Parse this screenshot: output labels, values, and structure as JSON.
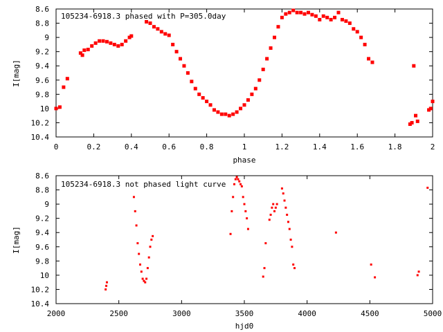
{
  "chart_data": [
    {
      "type": "scatter",
      "title": "105234-6918.3 phased with P=305.0day",
      "xlabel": "phase",
      "ylabel": "I[mag]",
      "xlim": [
        0,
        2
      ],
      "ylim": [
        10.4,
        8.6
      ],
      "y_inverted": true,
      "xticks": [
        "0",
        "0.2",
        "0.4",
        "0.6",
        "0.8",
        "1",
        "1.2",
        "1.4",
        "1.6",
        "1.8",
        "2"
      ],
      "yticks": [
        "8.6",
        "8.8",
        "9",
        "9.2",
        "9.4",
        "9.6",
        "9.8",
        "10",
        "10.2",
        "10.4"
      ],
      "grid": false,
      "marker_color": "#ff0000",
      "series": [
        {
          "name": "",
          "x": [
            0.0,
            0.02,
            0.04,
            0.06,
            0.13,
            0.14,
            0.15,
            0.17,
            0.19,
            0.21,
            0.23,
            0.25,
            0.27,
            0.29,
            0.31,
            0.33,
            0.35,
            0.37,
            0.39,
            0.4,
            0.48,
            0.5,
            0.52,
            0.54,
            0.56,
            0.58,
            0.6,
            0.62,
            0.64,
            0.66,
            0.68,
            0.7,
            0.72,
            0.74,
            0.76,
            0.78,
            0.8,
            0.82,
            0.84,
            0.86,
            0.88,
            0.9,
            0.92,
            0.94,
            0.96,
            0.98,
            1.0,
            1.02,
            1.04,
            1.06,
            1.08,
            1.1,
            1.12,
            1.14,
            1.16,
            1.18,
            1.2,
            1.22,
            1.24,
            1.26,
            1.28,
            1.3,
            1.32,
            1.34,
            1.36,
            1.38,
            1.4,
            1.42,
            1.44,
            1.46,
            1.48,
            1.5,
            1.52,
            1.54,
            1.56,
            1.58,
            1.6,
            1.62,
            1.64,
            1.66,
            1.68,
            1.88,
            1.89,
            1.9,
            1.91,
            1.92,
            1.98,
            1.99,
            2.0
          ],
          "y": [
            10.0,
            9.98,
            9.7,
            9.58,
            9.22,
            9.25,
            9.18,
            9.17,
            9.12,
            9.08,
            9.05,
            9.05,
            9.06,
            9.08,
            9.1,
            9.12,
            9.1,
            9.05,
            9.0,
            8.98,
            8.78,
            8.8,
            8.85,
            8.88,
            8.92,
            8.95,
            8.97,
            9.1,
            9.2,
            9.3,
            9.4,
            9.5,
            9.62,
            9.72,
            9.8,
            9.85,
            9.9,
            9.95,
            10.02,
            10.05,
            10.08,
            10.08,
            10.1,
            10.08,
            10.05,
            10.0,
            9.95,
            9.88,
            9.8,
            9.72,
            9.6,
            9.45,
            9.3,
            9.15,
            9.0,
            8.85,
            8.72,
            8.67,
            8.65,
            8.62,
            8.65,
            8.65,
            8.67,
            8.65,
            8.68,
            8.7,
            8.75,
            8.7,
            8.72,
            8.75,
            8.72,
            8.65,
            8.75,
            8.77,
            8.8,
            8.88,
            8.92,
            9.0,
            9.1,
            9.3,
            9.35,
            10.22,
            10.2,
            9.4,
            10.1,
            10.18,
            10.02,
            10.0,
            9.9
          ]
        }
      ]
    },
    {
      "type": "scatter",
      "title": "105234-6918.3 not phased light curve",
      "xlabel": "hjd0",
      "ylabel": "I[mag]",
      "xlim": [
        2000,
        5000
      ],
      "ylim": [
        10.4,
        8.6
      ],
      "y_inverted": true,
      "xticks": [
        "2000",
        "2500",
        "3000",
        "3500",
        "4000",
        "4500",
        "5000"
      ],
      "yticks": [
        "8.6",
        "8.8",
        "9",
        "9.2",
        "9.4",
        "9.6",
        "9.8",
        "10",
        "10.2",
        "10.4"
      ],
      "grid": false,
      "marker_color": "#ff0000",
      "series": [
        {
          "name": "",
          "x": [
            2395,
            2400,
            2405,
            2620,
            2630,
            2640,
            2650,
            2660,
            2670,
            2680,
            2690,
            2700,
            2710,
            2720,
            2730,
            2740,
            2750,
            2760,
            2770,
            3390,
            3400,
            3410,
            3420,
            3430,
            3440,
            3450,
            3460,
            3470,
            3480,
            3490,
            3500,
            3510,
            3520,
            3530,
            3650,
            3660,
            3670,
            3700,
            3710,
            3720,
            3730,
            3740,
            3750,
            3760,
            3800,
            3810,
            3820,
            3830,
            3840,
            3850,
            3860,
            3870,
            3880,
            3890,
            3900,
            4230,
            4510,
            4540,
            4880,
            4890,
            4960
          ],
          "y": [
            10.2,
            10.15,
            10.1,
            8.9,
            9.1,
            9.3,
            9.55,
            9.7,
            9.85,
            9.95,
            10.05,
            10.08,
            10.1,
            10.05,
            9.9,
            9.75,
            9.6,
            9.5,
            9.45,
            9.42,
            9.1,
            8.9,
            8.72,
            8.65,
            8.62,
            8.65,
            8.68,
            8.72,
            8.75,
            8.9,
            9.0,
            9.1,
            9.2,
            9.35,
            10.02,
            9.9,
            9.55,
            9.22,
            9.15,
            9.05,
            9.0,
            9.1,
            9.05,
            9.0,
            8.78,
            8.85,
            8.95,
            9.05,
            9.15,
            9.25,
            9.35,
            9.5,
            9.6,
            9.85,
            9.9,
            9.4,
            9.85,
            10.03,
            10.0,
            9.95,
            8.77
          ]
        }
      ]
    }
  ]
}
